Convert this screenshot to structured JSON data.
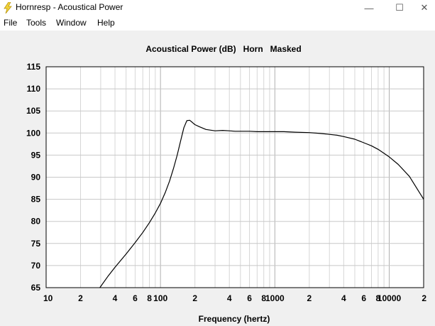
{
  "window": {
    "title": "Hornresp - Acoustical Power",
    "icon": "lightning-bolt-icon",
    "controls": {
      "minimize": "—",
      "maximize": "☐",
      "close": "✕"
    }
  },
  "menu": {
    "items": [
      "File",
      "Tools",
      "Window",
      "Help"
    ]
  },
  "chart_data": {
    "type": "line",
    "title": "Acoustical Power (dB)   Horn   Masked",
    "xlabel": "Frequency (hertz)",
    "ylabel": "",
    "x_scale": "log",
    "xlim": [
      10,
      20000
    ],
    "ylim": [
      65,
      115
    ],
    "grid": true,
    "y_ticks": [
      65,
      70,
      75,
      80,
      85,
      90,
      95,
      100,
      105,
      110,
      115
    ],
    "x_tick_labels": [
      {
        "x": 10,
        "label": "10"
      },
      {
        "x": 20,
        "label": "2"
      },
      {
        "x": 40,
        "label": "4"
      },
      {
        "x": 60,
        "label": "6"
      },
      {
        "x": 80,
        "label": "8"
      },
      {
        "x": 100,
        "label": "100"
      },
      {
        "x": 200,
        "label": "2"
      },
      {
        "x": 400,
        "label": "4"
      },
      {
        "x": 600,
        "label": "6"
      },
      {
        "x": 800,
        "label": "8"
      },
      {
        "x": 1000,
        "label": "1000"
      },
      {
        "x": 2000,
        "label": "2"
      },
      {
        "x": 4000,
        "label": "4"
      },
      {
        "x": 6000,
        "label": "6"
      },
      {
        "x": 8000,
        "label": "8"
      },
      {
        "x": 10000,
        "label": "10000"
      },
      {
        "x": 20000,
        "label": "2"
      }
    ],
    "series": [
      {
        "color": "#000000",
        "x": [
          29.5,
          35,
          40,
          50,
          60,
          70,
          80,
          90,
          100,
          110,
          120,
          130,
          140,
          150,
          160,
          170,
          180,
          190,
          200,
          220,
          250,
          300,
          350,
          400,
          450,
          500,
          600,
          700,
          800,
          1000,
          1200,
          1500,
          2000,
          2500,
          3000,
          3500,
          4000,
          5000,
          6000,
          7000,
          8000,
          10000,
          12000,
          15000,
          20000
        ],
        "y": [
          65,
          67.7,
          69.6,
          72.6,
          75.2,
          77.5,
          79.7,
          81.9,
          84.1,
          86.5,
          89.1,
          92,
          95,
          98.2,
          101.2,
          102.8,
          102.9,
          102.4,
          101.9,
          101.4,
          100.8,
          100.5,
          100.6,
          100.5,
          100.4,
          100.4,
          100.4,
          100.3,
          100.3,
          100.3,
          100.3,
          100.2,
          100.1,
          99.9,
          99.7,
          99.5,
          99.2,
          98.6,
          97.8,
          97.1,
          96.3,
          94.6,
          92.9,
          90.2,
          85
        ]
      }
    ]
  }
}
